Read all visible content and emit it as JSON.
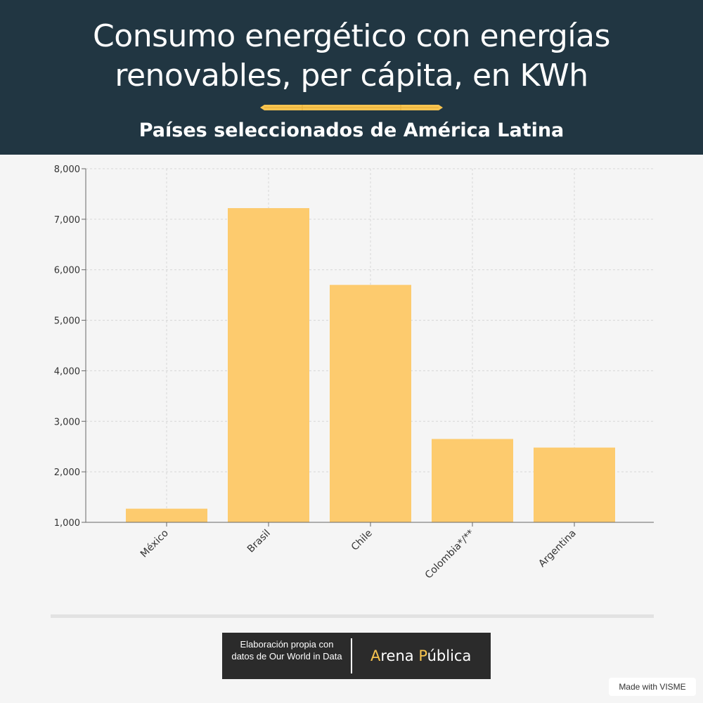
{
  "header": {
    "title_line1": "Consumo energético con energías",
    "title_line2": "renovables, per cápita, en KWh",
    "subtitle": "Países seleccionados de América Latina"
  },
  "chart_data": {
    "type": "bar",
    "categories": [
      "México",
      "Brasil",
      "Chile",
      "Colombia*/**",
      "Argentina"
    ],
    "values": [
      1270,
      7220,
      5700,
      2650,
      2480
    ],
    "ylim": [
      1000,
      8000
    ],
    "yticks": [
      1000,
      2000,
      3000,
      4000,
      5000,
      6000,
      7000,
      8000
    ],
    "ytick_labels": [
      "1,000",
      "2,000",
      "3,000",
      "4,000",
      "5,000",
      "6,000",
      "7,000",
      "8,000"
    ],
    "xlabel": "",
    "ylabel": "",
    "grid": true,
    "bar_color": "#fdcb6e",
    "grid_color": "#d6d6d6",
    "axis_color": "#666666"
  },
  "footer": {
    "source": "Elaboración propia con datos de Our World in Data",
    "logo_first_letter": "A",
    "logo_part1": "rena ",
    "logo_second_letter": "P",
    "logo_part2": "ública",
    "made_with": "Made with VISME"
  },
  "colors": {
    "header_bg": "#213642",
    "accent": "#f8c44f",
    "background": "#f5f5f5"
  }
}
